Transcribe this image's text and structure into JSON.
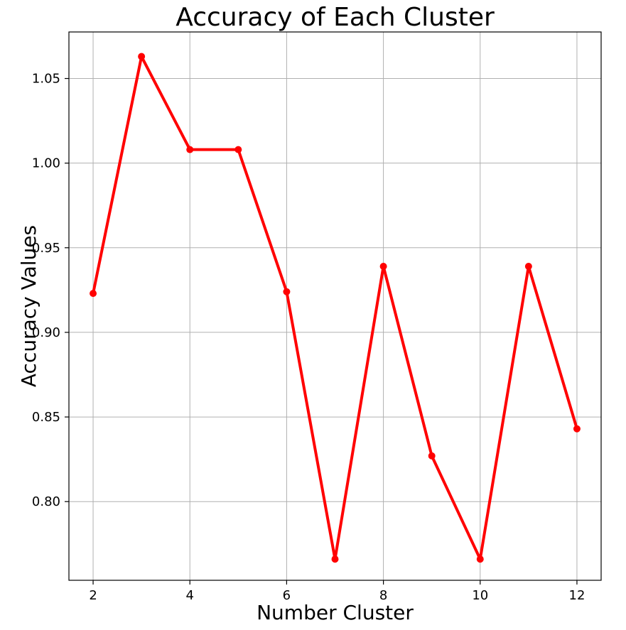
{
  "chart_data": {
    "type": "line",
    "title": "Accuracy of Each Cluster",
    "xlabel": "Number Cluster",
    "ylabel": "Accuracy Values",
    "xlim": [
      1.5,
      12.5
    ],
    "ylim": [
      0.7535,
      1.0775
    ],
    "xticks": [
      2,
      4,
      6,
      8,
      10,
      12
    ],
    "xtick_labels": [
      "2",
      "4",
      "6",
      "8",
      "10",
      "12"
    ],
    "yticks": [
      0.8,
      0.85,
      0.9,
      0.95,
      1.0,
      1.05
    ],
    "ytick_labels": [
      "0.80",
      "0.85",
      "0.90",
      "0.95",
      "1.00",
      "1.05"
    ],
    "grid": true,
    "series": [
      {
        "color": "#ff0000",
        "marker": "circle",
        "x": [
          2,
          3,
          4,
          5,
          6,
          7,
          8,
          9,
          10,
          11,
          12
        ],
        "y": [
          0.923,
          1.063,
          1.008,
          1.008,
          0.924,
          0.766,
          0.939,
          0.827,
          0.766,
          0.939,
          0.843
        ]
      }
    ]
  }
}
